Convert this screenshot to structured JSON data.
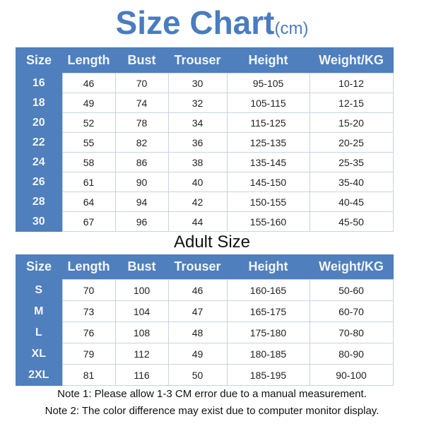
{
  "title": {
    "main": "Size Chart",
    "unit": "(cm)"
  },
  "headers": [
    "Size",
    "Length",
    "Bust",
    "Trouser",
    "Height",
    "Weight/KG"
  ],
  "kids_rows": [
    [
      "16",
      "46",
      "70",
      "30",
      "95-105",
      "10-12"
    ],
    [
      "18",
      "49",
      "74",
      "32",
      "105-115",
      "12-15"
    ],
    [
      "20",
      "52",
      "78",
      "34",
      "115-125",
      "15-20"
    ],
    [
      "22",
      "55",
      "82",
      "36",
      "125-135",
      "20-25"
    ],
    [
      "24",
      "58",
      "86",
      "38",
      "135-145",
      "25-35"
    ],
    [
      "26",
      "61",
      "90",
      "40",
      "145-150",
      "35-40"
    ],
    [
      "28",
      "64",
      "94",
      "42",
      "150-155",
      "40-45"
    ],
    [
      "30",
      "67",
      "96",
      "44",
      "155-160",
      "45-50"
    ]
  ],
  "adult_title": "Adult Size",
  "adult_rows": [
    [
      "S",
      "70",
      "100",
      "46",
      "160-165",
      "50-60"
    ],
    [
      "M",
      "73",
      "104",
      "47",
      "165-175",
      "60-70"
    ],
    [
      "L",
      "76",
      "108",
      "48",
      "175-180",
      "70-80"
    ],
    [
      "XL",
      "79",
      "112",
      "49",
      "180-185",
      "80-90"
    ],
    [
      "2XL",
      "81",
      "116",
      "50",
      "185-195",
      "90-100"
    ]
  ],
  "notes": [
    "Note 1: Please allow 1-3 CM error due to a manual measurement.",
    "Note 2: The color difference may exist due to computer monitor display."
  ],
  "colors": {
    "header_blue": "#4f7fbd",
    "title_blue": "#4a7cbf"
  }
}
